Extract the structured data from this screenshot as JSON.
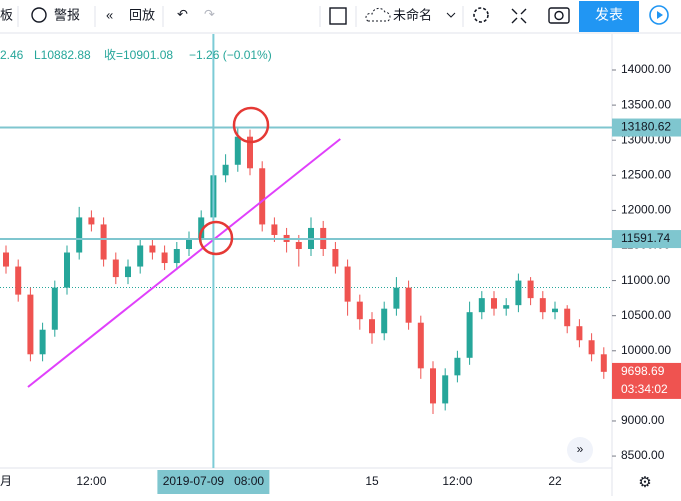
{
  "toolbar": {
    "left_cut": "板",
    "alert": "警报",
    "replay": "回放",
    "layout_name": "未命名",
    "publish": "发表"
  },
  "legend": {
    "high_cut": "2.46",
    "low": "L10882.88",
    "close": "收=10901.08",
    "change": "−1.26 (−0.01%)"
  },
  "chart_data": {
    "type": "candlestick",
    "categories": [
      "月",
      null,
      null,
      null,
      null,
      null,
      null,
      "12:00",
      null,
      null,
      null,
      null,
      null,
      null,
      null,
      null,
      null,
      null,
      null,
      null,
      null,
      null,
      null,
      null,
      null,
      null,
      null,
      null,
      null,
      null,
      "15",
      null,
      null,
      null,
      null,
      null,
      null,
      "12:00",
      null,
      null,
      null,
      null,
      null,
      null,
      null,
      "22",
      null,
      null,
      null,
      null
    ],
    "ohlc": [
      [
        11400,
        11500,
        11100,
        11200
      ],
      [
        11200,
        11300,
        10700,
        10800
      ],
      [
        10800,
        10900,
        9850,
        9950
      ],
      [
        9950,
        10400,
        9850,
        10300
      ],
      [
        10300,
        11000,
        10200,
        10900
      ],
      [
        10900,
        11500,
        10800,
        11400
      ],
      [
        11400,
        12050,
        11300,
        11900
      ],
      [
        11900,
        12000,
        11700,
        11800
      ],
      [
        11800,
        11900,
        11200,
        11300
      ],
      [
        11300,
        11400,
        10950,
        11050
      ],
      [
        11050,
        11300,
        10950,
        11200
      ],
      [
        11200,
        11600,
        11100,
        11500
      ],
      [
        11500,
        11600,
        11300,
        11400
      ],
      [
        11400,
        11500,
        11150,
        11250
      ],
      [
        11250,
        11550,
        11150,
        11450
      ],
      [
        11450,
        11700,
        11350,
        11600
      ],
      [
        11600,
        12000,
        11500,
        11900
      ],
      [
        11900,
        12700,
        11800,
        12500
      ],
      [
        12500,
        12800,
        12400,
        12650
      ],
      [
        12650,
        13180,
        12550,
        13050
      ],
      [
        13050,
        13150,
        12500,
        12600
      ],
      [
        12600,
        12700,
        11700,
        11800
      ],
      [
        11800,
        11900,
        11550,
        11650
      ],
      [
        11650,
        11750,
        11400,
        11550
      ],
      [
        11550,
        11650,
        11200,
        11450
      ],
      [
        11450,
        11900,
        11350,
        11750
      ],
      [
        11750,
        11850,
        11350,
        11450
      ],
      [
        11450,
        11550,
        11100,
        11200
      ],
      [
        11200,
        11300,
        10500,
        10700
      ],
      [
        10700,
        10800,
        10300,
        10450
      ],
      [
        10450,
        10550,
        10100,
        10250
      ],
      [
        10250,
        10700,
        10150,
        10600
      ],
      [
        10600,
        11050,
        10500,
        10900
      ],
      [
        10900,
        11000,
        10300,
        10400
      ],
      [
        10400,
        10500,
        9600,
        9750
      ],
      [
        9750,
        9850,
        9100,
        9250
      ],
      [
        9250,
        9750,
        9150,
        9650
      ],
      [
        9650,
        10000,
        9550,
        9900
      ],
      [
        9900,
        10700,
        9800,
        10550
      ],
      [
        10550,
        10850,
        10450,
        10750
      ],
      [
        10750,
        10850,
        10500,
        10600
      ],
      [
        10600,
        10750,
        10500,
        10650
      ],
      [
        10650,
        11100,
        10550,
        11000
      ],
      [
        11000,
        11050,
        10650,
        10750
      ],
      [
        10750,
        10850,
        10450,
        10550
      ],
      [
        10550,
        10700,
        10450,
        10600
      ],
      [
        10600,
        10650,
        10250,
        10350
      ],
      [
        10350,
        10450,
        10050,
        10150
      ],
      [
        10150,
        10250,
        9850,
        9950
      ],
      [
        9950,
        10050,
        9600,
        9700
      ]
    ],
    "up_color": "#26a69a",
    "down_color": "#ef5350",
    "ylim": [
      8330,
      14513
    ],
    "yticks": [
      {
        "value": 8500,
        "label": "8500.00"
      },
      {
        "value": 9000,
        "label": "9000.00"
      },
      {
        "value": 9500,
        "label": "9500.00"
      },
      {
        "value": 10000,
        "label": "10000.00"
      },
      {
        "value": 10500,
        "label": "10500.00"
      },
      {
        "value": 11000,
        "label": "11000.00"
      },
      {
        "value": 11500,
        "label": "11500.00"
      },
      {
        "value": 12000,
        "label": "12000.00"
      },
      {
        "value": 12500,
        "label": "12500.00"
      },
      {
        "value": 13000,
        "label": "13000.00"
      },
      {
        "value": 13500,
        "label": "13500.00"
      },
      {
        "value": 14000,
        "label": "14000.00"
      }
    ],
    "levels": [
      13180.62,
      11591.74
    ],
    "close_line": 10901.08,
    "last_price": 9698.69,
    "countdown": "03:34:02",
    "crosshair": {
      "index": 17,
      "label": "2019-07-09   08:00"
    },
    "trend_line": {
      "x": [
        1.8,
        27.4
      ],
      "y": [
        9484,
        13017
      ]
    }
  }
}
